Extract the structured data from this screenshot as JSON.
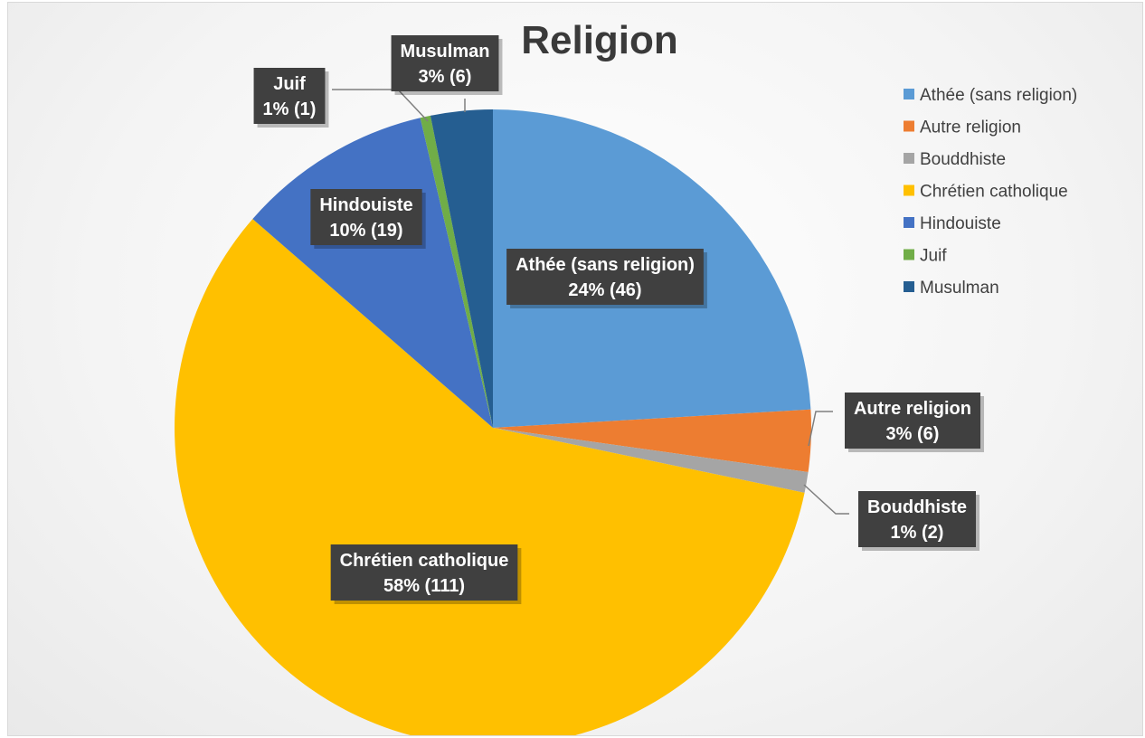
{
  "chart_data": {
    "type": "pie",
    "title": "Religion",
    "legend_position": "right",
    "slices": [
      {
        "name": "Athée (sans religion)",
        "value": 46,
        "percent_label": "24% (46)",
        "color": "#5B9BD5"
      },
      {
        "name": "Autre religion",
        "value": 6,
        "percent_label": "3% (6)",
        "color": "#ED7D31"
      },
      {
        "name": "Bouddhiste",
        "value": 2,
        "percent_label": "1% (2)",
        "color": "#A5A5A5"
      },
      {
        "name": "Chrétien catholique",
        "value": 111,
        "percent_label": "58% (111)",
        "color": "#FFC000"
      },
      {
        "name": "Hindouiste",
        "value": 19,
        "percent_label": "10% (19)",
        "color": "#4472C4"
      },
      {
        "name": "Juif",
        "value": 1,
        "percent_label": "1% (1)",
        "color": "#70AD47"
      },
      {
        "name": "Musulman",
        "value": 6,
        "percent_label": "3% (6)",
        "color": "#255E91"
      }
    ]
  }
}
